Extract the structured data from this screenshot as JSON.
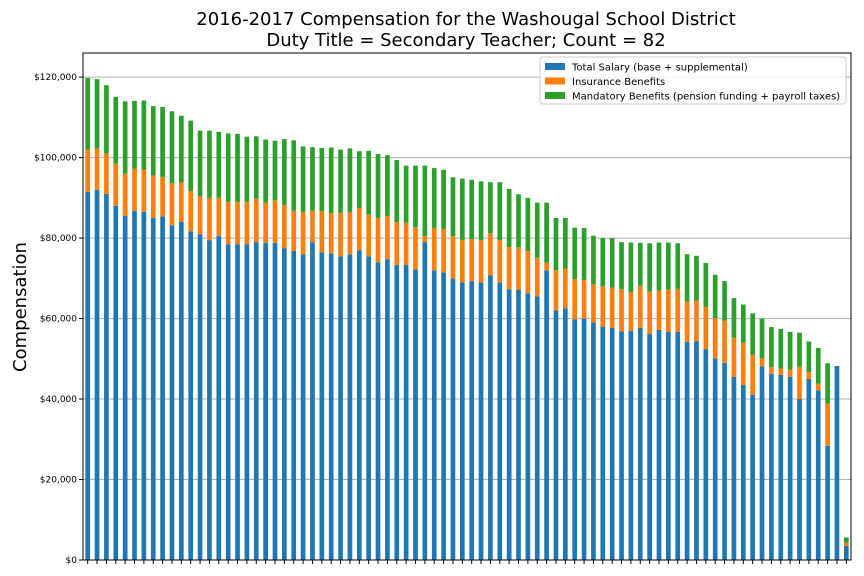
{
  "chart_data": {
    "type": "bar",
    "stacked": true,
    "title_lines": [
      "2016-2017 Compensation for the Washougal School District",
      "Duty Title = Secondary Teacher; Count = 82"
    ],
    "xlabel": "",
    "ylabel": "Compensation",
    "ylim": [
      0,
      126000
    ],
    "yticks": [
      0,
      20000,
      40000,
      60000,
      80000,
      100000,
      120000
    ],
    "ytick_labels": [
      "$0",
      "$20,000",
      "$40,000",
      "$60,000",
      "$80,000",
      "$100,000",
      "$120,000"
    ],
    "grid": "horizontal",
    "legend_position": "top-right",
    "colors": {
      "salary": "#1f77b4",
      "insurance": "#ff7f0e",
      "mandatory": "#2ca02c"
    },
    "series": [
      {
        "name": "Total Salary (base + supplemental)",
        "key": "salary",
        "values": [
          91500,
          92000,
          91000,
          88000,
          85500,
          86800,
          86500,
          85000,
          85400,
          83200,
          84000,
          81700,
          80900,
          79500,
          80500,
          78500,
          78500,
          78500,
          79000,
          78800,
          78800,
          77500,
          76800,
          76000,
          79000,
          76500,
          76200,
          75500,
          76000,
          77000,
          75500,
          74000,
          74700,
          73300,
          73300,
          72200,
          79000,
          72000,
          71500,
          70000,
          69000,
          69300,
          69000,
          70700,
          69000,
          67300,
          67200,
          66300,
          65500,
          72000,
          62000,
          62500,
          59800,
          60000,
          59000,
          58000,
          57700,
          56800,
          57000,
          57700,
          56200,
          57200,
          56700,
          56700,
          54200,
          54400,
          52400,
          50100,
          49000,
          45500,
          43500,
          41000,
          48100,
          46300,
          46000,
          45500,
          40000,
          45000,
          42200,
          28400,
          48200,
          3500
        ]
      },
      {
        "name": "Insurance Benefits",
        "key": "insurance",
        "values": [
          10500,
          10200,
          10000,
          10500,
          10500,
          10500,
          10500,
          10500,
          9800,
          10500,
          9800,
          10000,
          9500,
          10500,
          9500,
          10500,
          10500,
          10500,
          10800,
          10000,
          10600,
          10700,
          10000,
          10500,
          7800,
          10200,
          10000,
          10800,
          10500,
          10500,
          10300,
          11000,
          10800,
          10700,
          10500,
          10500,
          1500,
          10500,
          10700,
          10500,
          10500,
          10500,
          10500,
          10500,
          10500,
          10500,
          10500,
          10500,
          9700,
          1900,
          10000,
          9900,
          10000,
          9500,
          9500,
          10000,
          10000,
          10500,
          9500,
          10500,
          10500,
          9700,
          10500,
          10700,
          10000,
          10000,
          10500,
          10000,
          10500,
          9800,
          10500,
          10000,
          2000,
          1600,
          1600,
          1800,
          8000,
          1700,
          1600,
          10500,
          0,
          800
        ]
      },
      {
        "name": "Mandatory Benefits (pension funding + payroll taxes)",
        "key": "mandatory",
        "values": [
          17800,
          17300,
          17000,
          16600,
          18000,
          16800,
          17200,
          17300,
          17400,
          17800,
          16600,
          17500,
          16300,
          16700,
          16400,
          17000,
          16900,
          16200,
          15500,
          15700,
          14800,
          16400,
          17500,
          16300,
          15800,
          15700,
          16300,
          15700,
          15800,
          14100,
          15900,
          15900,
          15100,
          15400,
          14200,
          15300,
          17500,
          14900,
          14800,
          14600,
          15300,
          14700,
          14600,
          12700,
          14400,
          14400,
          13200,
          13200,
          13600,
          14900,
          13000,
          12600,
          12800,
          13000,
          12100,
          12000,
          12300,
          11700,
          12400,
          10600,
          12000,
          12000,
          11700,
          11300,
          11800,
          11200,
          10900,
          10800,
          9800,
          9800,
          9500,
          10300,
          9900,
          10000,
          9800,
          9400,
          8500,
          7600,
          8900,
          10000,
          0,
          1300
        ]
      }
    ]
  }
}
